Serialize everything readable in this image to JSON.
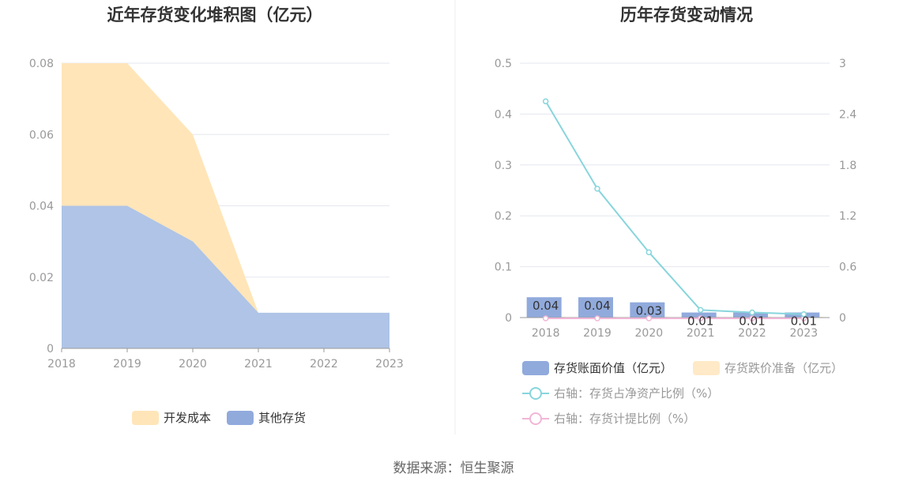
{
  "footer": {
    "source": "数据来源：恒生聚源"
  },
  "colors": {
    "dev_cost": "#FFE5B8",
    "other_inventory": "#AFC4E6",
    "other_inventory_legend": "#91AADC",
    "bar": "#91AADC",
    "reserve": "#FFE9C7",
    "net_asset_ratio": "#88D5DC",
    "provision_ratio": "#F0B6D6",
    "grid": "#E4E7EF",
    "axis": "#999999"
  },
  "chart_data": [
    {
      "type": "area",
      "title": "近年存货变化堆积图（亿元）",
      "x": [
        "2018",
        "2019",
        "2020",
        "2021",
        "2022",
        "2023"
      ],
      "y_ticks": [
        "0",
        "0.02",
        "0.04",
        "0.06",
        "0.08"
      ],
      "ylim": [
        0,
        0.08
      ],
      "stacked": true,
      "legend_position": "bottom",
      "series": [
        {
          "name": "开发成本",
          "values": [
            0.04,
            0.04,
            0.03,
            0,
            0,
            0
          ]
        },
        {
          "name": "其他存货",
          "values": [
            0.04,
            0.04,
            0.03,
            0.01,
            0.01,
            0.01
          ]
        }
      ]
    },
    {
      "type": "bar",
      "title": "历年存货变动情况",
      "categories": [
        "2018",
        "2019",
        "2020",
        "2021",
        "2022",
        "2023"
      ],
      "y_ticks_left": [
        "0",
        "0.1",
        "0.2",
        "0.3",
        "0.4",
        "0.5"
      ],
      "y_ticks_right": [
        "0",
        "0.6",
        "1.2",
        "1.8",
        "2.4",
        "3"
      ],
      "ylim_left": [
        0,
        0.5
      ],
      "ylim_right": [
        0,
        3
      ],
      "legend_position": "bottom",
      "series": [
        {
          "name": "存货账面价值（亿元）",
          "kind": "bar",
          "axis": "left",
          "values": [
            0.04,
            0.04,
            0.03,
            0.01,
            0.01,
            0.01
          ],
          "labels": [
            "0.04",
            "0.04",
            "0.03",
            "0.01",
            "0.01",
            "0.01"
          ]
        },
        {
          "name": "存货跌价准备（亿元）",
          "kind": "bar",
          "axis": "left",
          "values": [
            0,
            0,
            0,
            0,
            0,
            0
          ]
        },
        {
          "name": "右轴：存货占净资产比例（%）",
          "kind": "line",
          "axis": "right",
          "values": [
            2.55,
            1.52,
            0.77,
            0.09,
            0.06,
            0.04
          ]
        },
        {
          "name": "右轴：存货计提比例（%）",
          "kind": "line",
          "axis": "right",
          "values": [
            0,
            0,
            0,
            0,
            0,
            0
          ]
        }
      ]
    }
  ]
}
